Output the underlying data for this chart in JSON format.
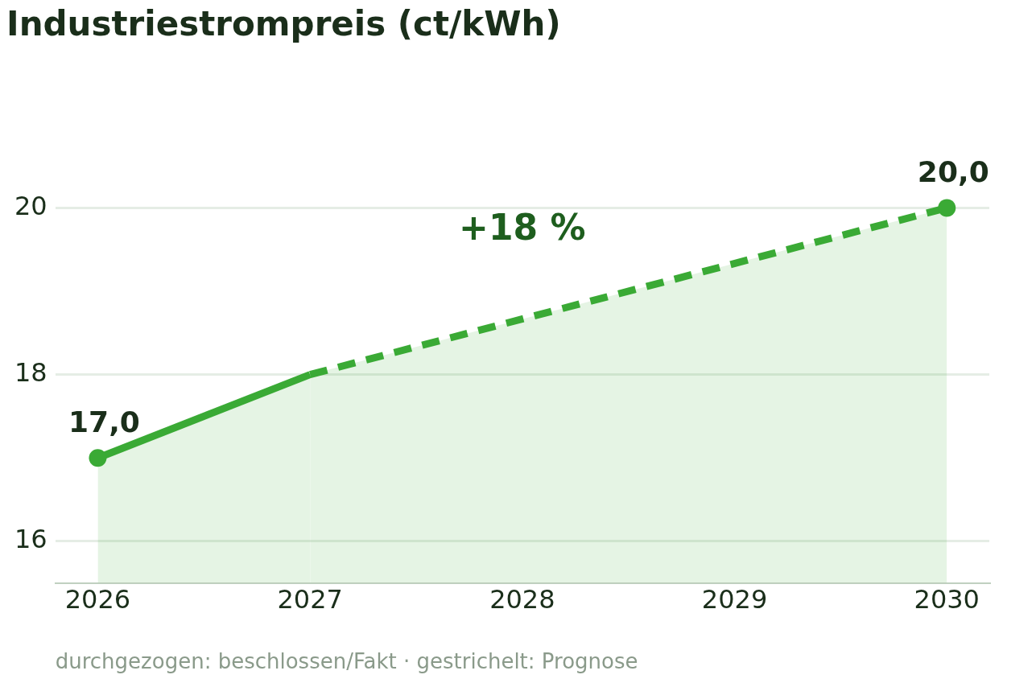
{
  "chart_data": {
    "type": "line",
    "title": "Industriestrompreis (ct/kWh)",
    "annotations": [
      "+18 %",
      "durchgezogen: beschlossen/Fakt · gestrichelt: Prognose"
    ],
    "series": [
      {
        "type": "area",
        "color": "#3aaa35",
        "line_style": "solid",
        "marker": "none",
        "x": [
          2026,
          2027
        ],
        "values": [
          17,
          18
        ]
      },
      {
        "type": "area",
        "color": "#3aaa35",
        "line_style": "dashed",
        "marker": "none",
        "x": [
          2027,
          2030
        ],
        "values": [
          18,
          20
        ]
      },
      {
        "type": "scatter",
        "color": "#3aaa35",
        "marker": "circle",
        "x": [
          2026,
          2030
        ],
        "values": [
          17,
          20
        ],
        "value_labels": [
          "17,0",
          "20,0"
        ]
      }
    ],
    "xlim": [
      2025.8,
      2030.2
    ],
    "xticks": [
      2026,
      2027,
      2028,
      2029,
      2030
    ],
    "ylim": [
      15.5,
      20
    ],
    "yticks": [
      16,
      18,
      20
    ],
    "grid": "y",
    "legend": false
  }
}
